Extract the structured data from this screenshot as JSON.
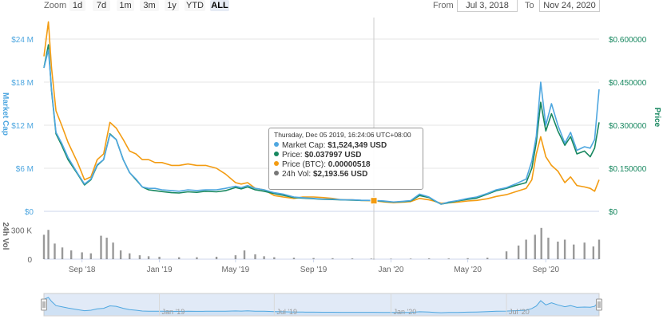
{
  "toolbar": {
    "zoom_label": "Zoom",
    "zoom_buttons": [
      "1d",
      "7d",
      "1m",
      "3m",
      "1y",
      "YTD",
      "ALL"
    ],
    "active_zoom": "ALL",
    "from_label": "From",
    "from_value": "Jul 3, 2018",
    "to_label": "To",
    "to_value": "Nov 24, 2020"
  },
  "colors": {
    "market_cap": "#4fa7e0",
    "price_usd": "#17875f",
    "price_btc": "#f39c12",
    "volume": "#777777",
    "navigator": "#c8d9f0"
  },
  "tooltip": {
    "date": "Thursday, Dec 05 2019, 16:24:06 UTC+08:00",
    "rows": [
      {
        "label": "Market Cap:",
        "value": "$1,524,349 USD",
        "color_key": "market_cap"
      },
      {
        "label": "Price:",
        "value": "$0.037997 USD",
        "color_key": "price_usd"
      },
      {
        "label": "Price (BTC):",
        "value": "0.00000518",
        "color_key": "price_btc"
      },
      {
        "label": "24h Vol:",
        "value": "$2,193.56 USD",
        "color_key": "volume"
      }
    ]
  },
  "chart_data": {
    "type": "line",
    "x_type": "date",
    "x_range": [
      "2018-07-03",
      "2020-11-24"
    ],
    "x_ticks": [
      {
        "date": "2018-09-01",
        "label": "Sep '18"
      },
      {
        "date": "2019-01-01",
        "label": "Jan '19"
      },
      {
        "date": "2019-05-01",
        "label": "May '19"
      },
      {
        "date": "2019-09-01",
        "label": "Sep '19"
      },
      {
        "date": "2020-01-01",
        "label": "Jan '20"
      },
      {
        "date": "2020-05-01",
        "label": "May '20"
      },
      {
        "date": "2020-09-01",
        "label": "Sep '20"
      }
    ],
    "navigator_ticks": [
      {
        "date": "2019-01-01",
        "label": "Jan '19"
      },
      {
        "date": "2019-07-01",
        "label": "Jul '19"
      },
      {
        "date": "2020-01-01",
        "label": "Jan '20"
      },
      {
        "date": "2020-07-01",
        "label": "Jul '20"
      }
    ],
    "left_axis": {
      "label": "Market Cap",
      "min": 0,
      "max": 27000000,
      "ticks": [
        {
          "value": 0,
          "label": "$0"
        },
        {
          "value": 6000000,
          "label": "$6 M"
        },
        {
          "value": 12000000,
          "label": "$12 M"
        },
        {
          "value": 18000000,
          "label": "$18 M"
        },
        {
          "value": 24000000,
          "label": "$24 M"
        }
      ]
    },
    "right_axis": {
      "label": "Price",
      "min": 0,
      "max": 0.675,
      "ticks": [
        {
          "value": 0,
          "label": "$0"
        },
        {
          "value": 0.15,
          "label": "$0.150000"
        },
        {
          "value": 0.3,
          "label": "$0.300000"
        },
        {
          "value": 0.45,
          "label": "$0.450000"
        },
        {
          "value": 0.6,
          "label": "$0.600000"
        }
      ]
    },
    "volume_axis": {
      "label": "24h Vol",
      "min": 0,
      "max": 400000,
      "ticks": [
        {
          "value": 0,
          "label": "0"
        },
        {
          "value": 300000,
          "label": "300 K"
        }
      ]
    },
    "crosshair_date": "2019-12-05",
    "series": [
      {
        "name": "Market Cap",
        "axis": "left",
        "color_key": "market_cap",
        "x": [
          "2018-07-03",
          "2018-07-10",
          "2018-07-15",
          "2018-07-22",
          "2018-07-31",
          "2018-08-10",
          "2018-08-25",
          "2018-09-05",
          "2018-09-15",
          "2018-09-25",
          "2018-10-05",
          "2018-10-15",
          "2018-10-25",
          "2018-11-05",
          "2018-11-15",
          "2018-11-25",
          "2018-12-05",
          "2018-12-15",
          "2018-12-25",
          "2019-01-05",
          "2019-01-20",
          "2019-02-01",
          "2019-02-15",
          "2019-03-01",
          "2019-03-15",
          "2019-04-01",
          "2019-04-15",
          "2019-05-01",
          "2019-05-10",
          "2019-05-20",
          "2019-06-01",
          "2019-06-15",
          "2019-07-01",
          "2019-07-15",
          "2019-08-01",
          "2019-08-15",
          "2019-09-01",
          "2019-09-15",
          "2019-10-01",
          "2019-10-15",
          "2019-11-01",
          "2019-11-15",
          "2019-12-05",
          "2019-12-20",
          "2020-01-05",
          "2020-01-20",
          "2020-02-01",
          "2020-02-15",
          "2020-03-01",
          "2020-03-10",
          "2020-03-20",
          "2020-04-01",
          "2020-04-15",
          "2020-05-01",
          "2020-05-15",
          "2020-06-01",
          "2020-06-15",
          "2020-07-01",
          "2020-07-15",
          "2020-08-01",
          "2020-08-10",
          "2020-08-17",
          "2020-08-24",
          "2020-09-01",
          "2020-09-10",
          "2020-09-20",
          "2020-10-01",
          "2020-10-10",
          "2020-10-20",
          "2020-11-01",
          "2020-11-10",
          "2020-11-17",
          "2020-11-24"
        ],
        "values": [
          20000000,
          22500000,
          17000000,
          11000000,
          9500000,
          7500000,
          5300000,
          3800000,
          4500000,
          6500000,
          7200000,
          10700000,
          10000000,
          7200000,
          5400000,
          4500000,
          3400000,
          3200000,
          3200000,
          3000000,
          2900000,
          2800000,
          3000000,
          2900000,
          3000000,
          3000000,
          3200000,
          3500000,
          3300000,
          3600000,
          3200000,
          3000000,
          2600000,
          2400000,
          2000000,
          1900000,
          1800000,
          1700000,
          1700000,
          1600000,
          1600000,
          1550000,
          1524349,
          1450000,
          1300000,
          1400000,
          1500000,
          2400000,
          2000000,
          1500000,
          1000000,
          1300000,
          1500000,
          1800000,
          2000000,
          2500000,
          3000000,
          3300000,
          3800000,
          4500000,
          7000000,
          10500000,
          18000000,
          12000000,
          15000000,
          12000000,
          9500000,
          11000000,
          8500000,
          9000000,
          8800000,
          10000000,
          17000000
        ]
      },
      {
        "name": "Price",
        "axis": "right",
        "color_key": "price_usd",
        "x": [
          "2018-07-03",
          "2018-07-10",
          "2018-07-15",
          "2018-07-22",
          "2018-07-31",
          "2018-08-10",
          "2018-08-25",
          "2018-09-05",
          "2018-09-15",
          "2018-09-25",
          "2018-10-05",
          "2018-10-15",
          "2018-10-25",
          "2018-11-05",
          "2018-11-15",
          "2018-11-25",
          "2018-12-05",
          "2018-12-15",
          "2018-12-25",
          "2019-01-05",
          "2019-01-20",
          "2019-02-01",
          "2019-02-15",
          "2019-03-01",
          "2019-03-15",
          "2019-04-01",
          "2019-04-15",
          "2019-05-01",
          "2019-05-10",
          "2019-05-20",
          "2019-06-01",
          "2019-06-15",
          "2019-07-01",
          "2019-07-15",
          "2019-08-01",
          "2019-08-15",
          "2019-09-01",
          "2019-09-15",
          "2019-10-01",
          "2019-10-15",
          "2019-11-01",
          "2019-11-15",
          "2019-12-05",
          "2019-12-20",
          "2020-01-05",
          "2020-01-20",
          "2020-02-01",
          "2020-02-15",
          "2020-03-01",
          "2020-03-10",
          "2020-03-20",
          "2020-04-01",
          "2020-04-15",
          "2020-05-01",
          "2020-05-15",
          "2020-06-01",
          "2020-06-15",
          "2020-07-01",
          "2020-07-15",
          "2020-08-01",
          "2020-08-10",
          "2020-08-17",
          "2020-08-24",
          "2020-09-01",
          "2020-09-10",
          "2020-09-20",
          "2020-10-01",
          "2020-10-10",
          "2020-10-20",
          "2020-11-01",
          "2020-11-10",
          "2020-11-17",
          "2020-11-24"
        ],
        "values": [
          0.5,
          0.58,
          0.42,
          0.27,
          0.23,
          0.18,
          0.13,
          0.092,
          0.11,
          0.16,
          0.18,
          0.27,
          0.25,
          0.18,
          0.135,
          0.11,
          0.085,
          0.075,
          0.072,
          0.069,
          0.065,
          0.064,
          0.068,
          0.066,
          0.07,
          0.068,
          0.072,
          0.083,
          0.078,
          0.085,
          0.075,
          0.07,
          0.062,
          0.056,
          0.048,
          0.046,
          0.044,
          0.042,
          0.041,
          0.04,
          0.039,
          0.038,
          0.037997,
          0.035,
          0.032,
          0.034,
          0.036,
          0.055,
          0.048,
          0.036,
          0.025,
          0.03,
          0.036,
          0.042,
          0.046,
          0.06,
          0.072,
          0.08,
          0.09,
          0.1,
          0.15,
          0.24,
          0.38,
          0.28,
          0.34,
          0.28,
          0.23,
          0.26,
          0.2,
          0.21,
          0.19,
          0.22,
          0.31
        ]
      },
      {
        "name": "Price (BTC)",
        "axis": "right",
        "color_key": "price_btc",
        "x": [
          "2018-07-03",
          "2018-07-10",
          "2018-07-15",
          "2018-07-22",
          "2018-07-31",
          "2018-08-10",
          "2018-08-25",
          "2018-09-05",
          "2018-09-15",
          "2018-09-25",
          "2018-10-05",
          "2018-10-15",
          "2018-10-25",
          "2018-11-05",
          "2018-11-15",
          "2018-11-25",
          "2018-12-05",
          "2018-12-15",
          "2018-12-25",
          "2019-01-05",
          "2019-01-20",
          "2019-02-01",
          "2019-02-15",
          "2019-03-01",
          "2019-03-15",
          "2019-04-01",
          "2019-04-15",
          "2019-05-01",
          "2019-05-10",
          "2019-05-20",
          "2019-06-01",
          "2019-06-15",
          "2019-07-01",
          "2019-07-15",
          "2019-08-01",
          "2019-08-15",
          "2019-09-01",
          "2019-09-15",
          "2019-10-01",
          "2019-10-15",
          "2019-11-01",
          "2019-11-15",
          "2019-12-05",
          "2019-12-20",
          "2020-01-05",
          "2020-01-20",
          "2020-02-01",
          "2020-02-15",
          "2020-03-01",
          "2020-03-10",
          "2020-03-20",
          "2020-04-01",
          "2020-04-15",
          "2020-05-01",
          "2020-05-15",
          "2020-06-01",
          "2020-06-15",
          "2020-07-01",
          "2020-07-15",
          "2020-08-01",
          "2020-08-10",
          "2020-08-17",
          "2020-08-24",
          "2020-09-01",
          "2020-09-10",
          "2020-09-20",
          "2020-10-01",
          "2020-10-10",
          "2020-10-20",
          "2020-11-01",
          "2020-11-10",
          "2020-11-17",
          "2020-11-24"
        ],
        "values": [
          0.54,
          0.66,
          0.5,
          0.35,
          0.3,
          0.24,
          0.17,
          0.11,
          0.12,
          0.18,
          0.2,
          0.31,
          0.29,
          0.25,
          0.21,
          0.2,
          0.18,
          0.18,
          0.17,
          0.17,
          0.16,
          0.16,
          0.165,
          0.16,
          0.16,
          0.15,
          0.13,
          0.1,
          0.095,
          0.1,
          0.08,
          0.075,
          0.055,
          0.05,
          0.045,
          0.05,
          0.05,
          0.048,
          0.045,
          0.04,
          0.04,
          0.038,
          0.037,
          0.033,
          0.03,
          0.032,
          0.034,
          0.045,
          0.04,
          0.035,
          0.028,
          0.03,
          0.032,
          0.036,
          0.038,
          0.044,
          0.052,
          0.058,
          0.068,
          0.08,
          0.11,
          0.2,
          0.26,
          0.19,
          0.16,
          0.14,
          0.1,
          0.12,
          0.09,
          0.085,
          0.08,
          0.07,
          0.11
        ]
      },
      {
        "name": "24h Vol",
        "axis": "volume",
        "color_key": "volume",
        "x": [
          "2018-07-03",
          "2018-07-10",
          "2018-07-20",
          "2018-08-01",
          "2018-08-15",
          "2018-09-01",
          "2018-09-15",
          "2018-10-01",
          "2018-10-10",
          "2018-10-20",
          "2018-11-01",
          "2018-11-15",
          "2018-12-01",
          "2018-12-15",
          "2019-01-01",
          "2019-02-01",
          "2019-03-01",
          "2019-04-01",
          "2019-05-01",
          "2019-05-15",
          "2019-06-01",
          "2019-06-15",
          "2019-07-01",
          "2019-08-01",
          "2019-09-01",
          "2019-10-01",
          "2019-11-01",
          "2019-12-01",
          "2019-12-05",
          "2020-01-01",
          "2020-02-01",
          "2020-03-01",
          "2020-04-01",
          "2020-05-01",
          "2020-06-01",
          "2020-07-01",
          "2020-07-20",
          "2020-08-01",
          "2020-08-15",
          "2020-08-25",
          "2020-09-05",
          "2020-09-20",
          "2020-10-01",
          "2020-10-15",
          "2020-11-01",
          "2020-11-15",
          "2020-11-24"
        ],
        "values": [
          250000,
          300000,
          160000,
          120000,
          90000,
          70000,
          60000,
          240000,
          220000,
          170000,
          90000,
          60000,
          40000,
          30000,
          25000,
          20000,
          20000,
          25000,
          40000,
          90000,
          50000,
          30000,
          20000,
          15000,
          12000,
          10000,
          8000,
          6000,
          2194,
          5000,
          6000,
          8000,
          7000,
          10000,
          15000,
          80000,
          140000,
          200000,
          250000,
          320000,
          220000,
          180000,
          200000,
          150000,
          170000,
          130000,
          200000
        ]
      }
    ]
  }
}
